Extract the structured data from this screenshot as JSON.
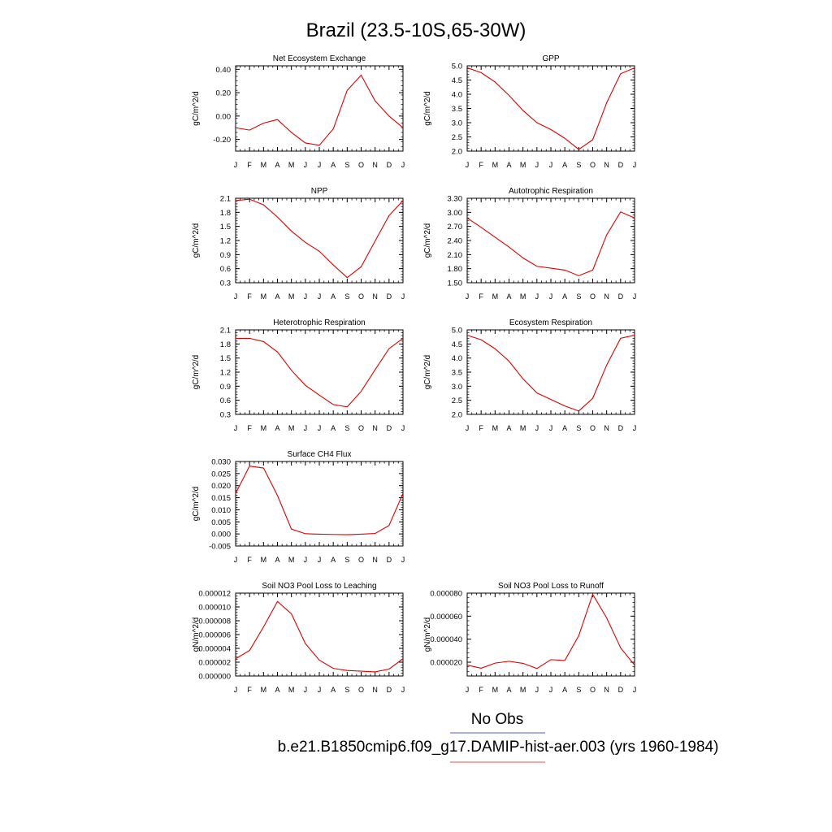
{
  "figure": {
    "title": "Brazil (23.5-10S,65-30W)",
    "legend": [
      {
        "label": "No Obs",
        "color": "#7777ee"
      },
      {
        "label": "b.e21.B1850cmip6.f09_g17.DAMIP-hist-aer.003 (yrs 1960-1984)",
        "color": "#ee7777"
      }
    ],
    "line_color": "#dd0000"
  },
  "chart_data": [
    {
      "type": "line",
      "title": "Net Ecosystem Exchange",
      "ylabel": "gC/m^2/d",
      "categories": [
        "J",
        "F",
        "M",
        "A",
        "M",
        "J",
        "J",
        "A",
        "S",
        "O",
        "N",
        "D",
        "J"
      ],
      "ylim": [
        -0.3,
        0.43
      ],
      "yticks": [
        "0.40",
        "0.20",
        "0.00",
        "-0.20"
      ],
      "ytick_values": [
        0.4,
        0.2,
        0.0,
        -0.2
      ],
      "series": [
        {
          "values": [
            -0.1,
            -0.12,
            -0.06,
            -0.03,
            -0.14,
            -0.23,
            -0.25,
            -0.11,
            0.22,
            0.35,
            0.13,
            0.0,
            -0.1
          ]
        }
      ]
    },
    {
      "type": "line",
      "title": "GPP",
      "ylabel": "gC/m^2/d",
      "categories": [
        "J",
        "F",
        "M",
        "A",
        "M",
        "J",
        "J",
        "A",
        "S",
        "O",
        "N",
        "D",
        "J"
      ],
      "ylim": [
        2.0,
        5.0
      ],
      "yticks": [
        "5.0",
        "4.5",
        "4.0",
        "3.5",
        "3.0",
        "2.5",
        "2.0"
      ],
      "ytick_values": [
        5.0,
        4.5,
        4.0,
        3.5,
        3.0,
        2.5,
        2.0
      ],
      "series": [
        {
          "values": [
            4.93,
            4.76,
            4.43,
            3.96,
            3.43,
            3.0,
            2.76,
            2.45,
            2.06,
            2.4,
            3.7,
            4.72,
            4.93
          ]
        }
      ]
    },
    {
      "type": "line",
      "title": "NPP",
      "ylabel": "gC/m^2/d",
      "categories": [
        "J",
        "F",
        "M",
        "A",
        "M",
        "J",
        "J",
        "A",
        "S",
        "O",
        "N",
        "D",
        "J"
      ],
      "ylim": [
        0.3,
        2.1
      ],
      "yticks": [
        "2.1",
        "1.8",
        "1.5",
        "1.2",
        "0.9",
        "0.6",
        "0.3"
      ],
      "ytick_values": [
        2.1,
        1.8,
        1.5,
        1.2,
        0.9,
        0.6,
        0.3
      ],
      "series": [
        {
          "values": [
            2.05,
            2.08,
            1.96,
            1.7,
            1.4,
            1.16,
            0.97,
            0.68,
            0.41,
            0.64,
            1.19,
            1.73,
            2.05
          ]
        }
      ]
    },
    {
      "type": "line",
      "title": "Autotrophic Respiration",
      "ylabel": "gC/m^2/d",
      "categories": [
        "J",
        "F",
        "M",
        "A",
        "M",
        "J",
        "J",
        "A",
        "S",
        "O",
        "N",
        "D",
        "J"
      ],
      "ylim": [
        1.5,
        3.3
      ],
      "yticks": [
        "3.30",
        "3.00",
        "2.70",
        "2.40",
        "2.10",
        "1.80",
        "1.50"
      ],
      "ytick_values": [
        3.3,
        3.0,
        2.7,
        2.4,
        2.1,
        1.8,
        1.5
      ],
      "series": [
        {
          "values": [
            2.88,
            2.68,
            2.47,
            2.26,
            2.03,
            1.85,
            1.81,
            1.77,
            1.65,
            1.77,
            2.52,
            3.01,
            2.88
          ]
        }
      ]
    },
    {
      "type": "line",
      "title": "Heterotrophic Respiration",
      "ylabel": "gC/m^2/d",
      "categories": [
        "J",
        "F",
        "M",
        "A",
        "M",
        "J",
        "J",
        "A",
        "S",
        "O",
        "N",
        "D",
        "J"
      ],
      "ylim": [
        0.3,
        2.1
      ],
      "yticks": [
        "2.1",
        "1.8",
        "1.5",
        "1.2",
        "0.9",
        "0.6",
        "0.3"
      ],
      "ytick_values": [
        2.1,
        1.8,
        1.5,
        1.2,
        0.9,
        0.6,
        0.3
      ],
      "series": [
        {
          "values": [
            1.92,
            1.92,
            1.85,
            1.63,
            1.24,
            0.92,
            0.71,
            0.51,
            0.46,
            0.79,
            1.25,
            1.7,
            1.92
          ]
        }
      ]
    },
    {
      "type": "line",
      "title": "Ecosystem Respiration",
      "ylabel": "gC/m^2/d",
      "categories": [
        "J",
        "F",
        "M",
        "A",
        "M",
        "J",
        "J",
        "A",
        "S",
        "O",
        "N",
        "D",
        "J"
      ],
      "ylim": [
        2.0,
        5.0
      ],
      "yticks": [
        "5.0",
        "4.5",
        "4.0",
        "3.5",
        "3.0",
        "2.5",
        "2.0"
      ],
      "ytick_values": [
        5.0,
        4.5,
        4.0,
        3.5,
        3.0,
        2.5,
        2.0
      ],
      "series": [
        {
          "values": [
            4.81,
            4.65,
            4.33,
            3.89,
            3.26,
            2.76,
            2.53,
            2.3,
            2.12,
            2.57,
            3.75,
            4.7,
            4.81
          ]
        }
      ]
    },
    {
      "type": "line",
      "title": "Surface CH4 Flux",
      "ylabel": "gC/m^2/d",
      "categories": [
        "J",
        "F",
        "M",
        "A",
        "M",
        "J",
        "J",
        "A",
        "S",
        "O",
        "N",
        "D",
        "J"
      ],
      "ylim": [
        -0.005,
        0.03
      ],
      "yticks": [
        "0.030",
        "0.025",
        "0.020",
        "0.015",
        "0.010",
        "0.005",
        "0.000",
        "-0.005"
      ],
      "ytick_values": [
        0.03,
        0.025,
        0.02,
        0.015,
        0.01,
        0.005,
        0.0,
        -0.005
      ],
      "series": [
        {
          "values": [
            0.0168,
            0.0281,
            0.0273,
            0.0159,
            0.002,
            0.0001,
            -0.0001,
            -0.0002,
            -0.0003,
            -0.0001,
            0.0002,
            0.0035,
            0.0168
          ]
        }
      ]
    },
    {
      "type": "line",
      "title": "Soil NO3 Pool Loss to Leaching",
      "ylabel": "gN/m^2/d",
      "categories": [
        "J",
        "F",
        "M",
        "A",
        "M",
        "J",
        "J",
        "A",
        "S",
        "O",
        "N",
        "D",
        "J"
      ],
      "ylim": [
        0.0,
        1.2e-05
      ],
      "yticks": [
        "0.000012",
        "0.000010",
        "0.000008",
        "0.000006",
        "0.000004",
        "0.000002",
        "0.000000"
      ],
      "ytick_values": [
        1.2e-05,
        1e-05,
        8e-06,
        6e-06,
        4e-06,
        2e-06,
        0.0
      ],
      "series": [
        {
          "values": [
            2.5e-06,
            3.7e-06,
            7.1e-06,
            1.08e-05,
            9e-06,
            4.7e-06,
            2.3e-06,
            1.1e-06,
            8e-07,
            7e-07,
            6e-07,
            1e-06,
            2.5e-06
          ]
        }
      ]
    },
    {
      "type": "line",
      "title": "Soil NO3 Pool Loss to Runoff",
      "ylabel": "gN/m^2/d",
      "categories": [
        "J",
        "F",
        "M",
        "A",
        "M",
        "J",
        "J",
        "A",
        "S",
        "O",
        "N",
        "D",
        "J"
      ],
      "ylim": [
        8e-06,
        8e-05
      ],
      "yticks": [
        "0.000080",
        "0.000060",
        "0.000040",
        "0.000020"
      ],
      "ytick_values": [
        8e-05,
        6e-05,
        4e-05,
        2e-05
      ],
      "series": [
        {
          "values": [
            1.75e-05,
            1.48e-05,
            1.92e-05,
            2.08e-05,
            1.9e-05,
            1.45e-05,
            2.22e-05,
            2.15e-05,
            4.3e-05,
            7.9e-05,
            5.85e-05,
            3.25e-05,
            1.75e-05
          ]
        }
      ]
    }
  ]
}
